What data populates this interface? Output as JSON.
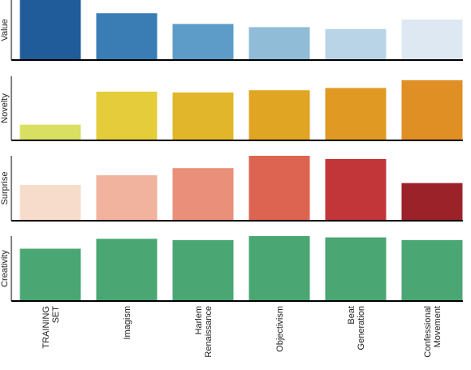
{
  "chart_data": [
    {
      "type": "bar",
      "ylabel": "Value",
      "categories": [
        "TRAINING SET",
        "Imagism",
        "Harlem Renaissance",
        "Objectivism",
        "Beat Generation",
        "Confessional Movement"
      ],
      "values": [
        1.0,
        0.74,
        0.57,
        0.52,
        0.49,
        0.64
      ],
      "ylim": [
        0,
        1.0
      ],
      "colors": [
        "#1f5c99",
        "#3a7db5",
        "#5d9cc8",
        "#90bcd8",
        "#bad4e7",
        "#dde8f3"
      ]
    },
    {
      "type": "bar",
      "ylabel": "Novelty",
      "categories": [
        "TRAINING SET",
        "Imagism",
        "Harlem Renaissance",
        "Objectivism",
        "Beat Generation",
        "Confessional Movement"
      ],
      "values": [
        0.245,
        0.76,
        0.747,
        0.782,
        0.818,
        0.939
      ],
      "ylim": [
        0,
        1.0
      ],
      "colors": [
        "#d9df60",
        "#e4cc3a",
        "#e2b62a",
        "#e1a524",
        "#e09a24",
        "#df8f24"
      ]
    },
    {
      "type": "bar",
      "ylabel": "Surprise",
      "categories": [
        "TRAINING SET",
        "Imagism",
        "Harlem Renaissance",
        "Objectivism",
        "Beat Generation",
        "Confessional Movement"
      ],
      "values": [
        0.55,
        0.7,
        0.81,
        1.0,
        0.95,
        0.58
      ],
      "ylim": [
        0,
        1.0
      ],
      "colors": [
        "#f8dccb",
        "#f1b39e",
        "#e98f7a",
        "#de6452",
        "#c23538",
        "#9a2228"
      ]
    },
    {
      "type": "bar",
      "ylabel": "Creativity",
      "categories": [
        "TRAINING SET",
        "Imagism",
        "Harlem Renaissance",
        "Objectivism",
        "Beat Generation",
        "Confessional Movement"
      ],
      "values": [
        0.806,
        0.959,
        0.939,
        1.0,
        0.98,
        0.939
      ],
      "ylim": [
        0,
        1.0
      ],
      "colors": [
        "#4aa673",
        "#4aa673",
        "#4aa673",
        "#4aa673",
        "#4aa673",
        "#4aa673"
      ]
    }
  ],
  "x_tick_lines": [
    [
      "TRAINING",
      "SET"
    ],
    [
      "Imagism"
    ],
    [
      "Harlem",
      "Renaissance"
    ],
    [
      "Objectivism"
    ],
    [
      "Beat",
      "Generation"
    ],
    [
      "Confessional",
      "Movement"
    ]
  ]
}
